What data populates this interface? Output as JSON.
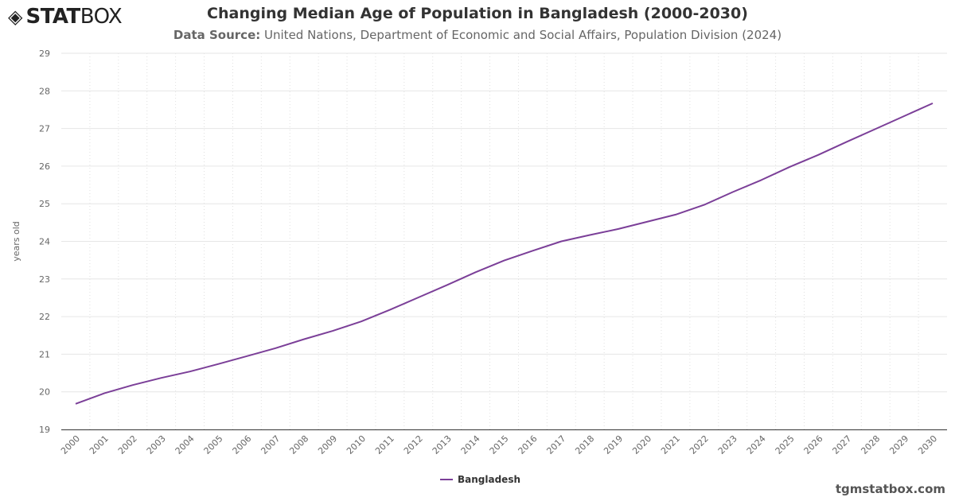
{
  "logo": {
    "text_bold": "STAT",
    "text_light": "BOX"
  },
  "header": {
    "title": "Changing Median Age of Population in Bangladesh (2000-2030)",
    "source_label": "Data Source:",
    "source_text": "United Nations, Department of Economic and Social Affairs, Population Division (2024)"
  },
  "footer": {
    "site": "tgmstatbox.com"
  },
  "chart_data": {
    "type": "line",
    "title": "Changing Median Age of Population in Bangladesh (2000-2030)",
    "xlabel": "",
    "ylabel": "years old",
    "ylim": [
      19,
      29
    ],
    "yticks": [
      19,
      20,
      21,
      22,
      23,
      24,
      25,
      26,
      27,
      28,
      29
    ],
    "grid": true,
    "legend": "bottom-center",
    "categories": [
      "2000",
      "2001",
      "2002",
      "2003",
      "2004",
      "2005",
      "2006",
      "2007",
      "2008",
      "2009",
      "2010",
      "2011",
      "2012",
      "2013",
      "2014",
      "2015",
      "2016",
      "2017",
      "2018",
      "2019",
      "2020",
      "2021",
      "2022",
      "2023",
      "2024",
      "2025",
      "2026",
      "2027",
      "2028",
      "2029",
      "2030"
    ],
    "series": [
      {
        "name": "Bangladesh",
        "color": "#7b3f98",
        "values": [
          19.68,
          19.96,
          20.18,
          20.37,
          20.54,
          20.74,
          20.95,
          21.16,
          21.4,
          21.62,
          21.87,
          22.18,
          22.51,
          22.84,
          23.18,
          23.49,
          23.75,
          24.0,
          24.17,
          24.33,
          24.52,
          24.71,
          24.97,
          25.31,
          25.63,
          25.98,
          26.3,
          26.65,
          26.99,
          27.33,
          27.67
        ]
      }
    ]
  }
}
